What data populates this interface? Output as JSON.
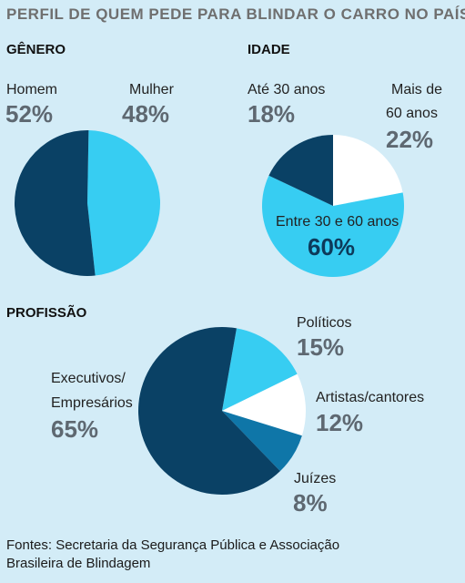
{
  "title": "PERFIL DE QUEM PEDE PARA BLINDAR O CARRO NO PAÍS",
  "source_line1": "Fontes: Secretaria da Segurança Pública e Associação",
  "source_line2": "Brasileira de Blindagem",
  "colors": {
    "dark": "#0a4165",
    "light": "#37cdf2",
    "white": "#ffffff",
    "mid": "#0f76a8",
    "background": "#d3ecf7"
  },
  "chart_data": [
    {
      "type": "pie",
      "title": "GÊNERO",
      "slices": [
        {
          "label": "Homem",
          "value": 52,
          "value_label": "52%",
          "color": "#0a4165"
        },
        {
          "label": "Mulher",
          "value": 48,
          "value_label": "48%",
          "color": "#37cdf2"
        }
      ]
    },
    {
      "type": "pie",
      "title": "IDADE",
      "slices": [
        {
          "label": "Mais de 60 anos",
          "label_line1": "Mais de",
          "label_line2": "60 anos",
          "value": 22,
          "value_label": "22%",
          "color": "#ffffff"
        },
        {
          "label": "Entre 30 e 60 anos",
          "value": 60,
          "value_label": "60%",
          "color": "#37cdf2"
        },
        {
          "label": "Até 30 anos",
          "value": 18,
          "value_label": "18%",
          "color": "#0a4165"
        }
      ]
    },
    {
      "type": "pie",
      "title": "PROFISSÃO",
      "slices": [
        {
          "label": "Políticos",
          "value": 15,
          "value_label": "15%",
          "color": "#37cdf2"
        },
        {
          "label": "Artistas/cantores",
          "value": 12,
          "value_label": "12%",
          "color": "#ffffff"
        },
        {
          "label": "Juízes",
          "value": 8,
          "value_label": "8%",
          "color": "#0f76a8"
        },
        {
          "label": "Executivos/ Empresários",
          "label_line1": "Executivos/",
          "label_line2": "Empresários",
          "value": 65,
          "value_label": "65%",
          "color": "#0a4165"
        }
      ]
    }
  ]
}
